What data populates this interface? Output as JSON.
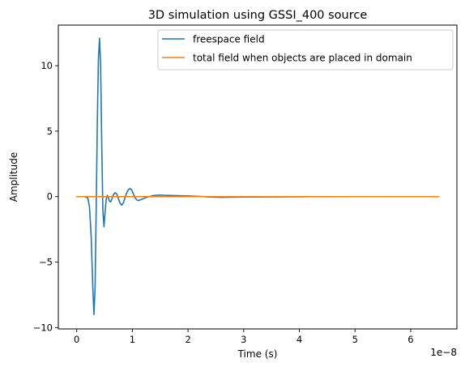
{
  "chart_data": {
    "type": "line",
    "title": "3D simulation using GSSI_400 source",
    "xlabel": "Time (s)",
    "ylabel": "Amplitude",
    "x_offset_label": "1e−8",
    "xlim": [
      -0.33,
      6.83
    ],
    "ylim": [
      -10.1,
      13.1
    ],
    "x_ticks": [
      0,
      1,
      2,
      3,
      4,
      5,
      6
    ],
    "x_tick_labels": [
      "0",
      "1",
      "2",
      "3",
      "4",
      "5",
      "6"
    ],
    "y_ticks": [
      -10,
      -5,
      0,
      5,
      10
    ],
    "y_tick_labels": [
      "−10",
      "−5",
      "0",
      "5",
      "10"
    ],
    "grid": false,
    "legend_position": "top-right",
    "x_unit_scale": "1e-8",
    "series": [
      {
        "name": "freespace field",
        "color": "#1f77b4",
        "x": [
          0.0,
          0.15,
          0.2,
          0.23,
          0.26,
          0.29,
          0.31,
          0.33,
          0.35,
          0.37,
          0.39,
          0.41,
          0.43,
          0.45,
          0.47,
          0.49,
          0.51,
          0.53,
          0.55,
          0.57,
          0.59,
          0.61,
          0.63,
          0.66,
          0.69,
          0.72,
          0.75,
          0.78,
          0.81,
          0.84,
          0.87,
          0.9,
          0.93,
          0.96,
          0.99,
          1.02,
          1.05,
          1.08,
          1.11,
          1.14,
          1.17,
          1.2,
          1.25,
          1.3,
          1.35,
          1.4,
          1.5,
          1.6,
          1.8,
          2.0,
          2.2,
          2.4,
          2.6,
          3.0,
          3.5,
          4.0,
          5.0,
          6.0,
          6.5
        ],
        "y": [
          0.0,
          0.0,
          -0.1,
          -0.8,
          -3.0,
          -7.0,
          -9.0,
          -7.0,
          -1.0,
          5.5,
          10.5,
          12.1,
          10.0,
          4.0,
          -1.0,
          -2.3,
          -1.2,
          -0.2,
          0.1,
          -0.1,
          -0.35,
          -0.4,
          -0.2,
          0.15,
          0.3,
          0.2,
          -0.15,
          -0.5,
          -0.65,
          -0.45,
          -0.05,
          0.3,
          0.55,
          0.62,
          0.5,
          0.2,
          -0.1,
          -0.25,
          -0.3,
          -0.25,
          -0.2,
          -0.15,
          -0.05,
          0.0,
          0.05,
          0.1,
          0.12,
          0.1,
          0.07,
          0.05,
          0.02,
          -0.03,
          -0.05,
          -0.03,
          -0.02,
          -0.01,
          0.0,
          0.0,
          0.0
        ]
      },
      {
        "name": "total field when objects are placed in domain",
        "color": "#ff7f0e",
        "x": [
          0.0,
          1.0,
          2.0,
          3.0,
          4.0,
          5.0,
          6.0,
          6.5
        ],
        "y": [
          0.0,
          0.0,
          0.0,
          0.0,
          0.0,
          0.0,
          0.0,
          0.0
        ]
      }
    ]
  }
}
